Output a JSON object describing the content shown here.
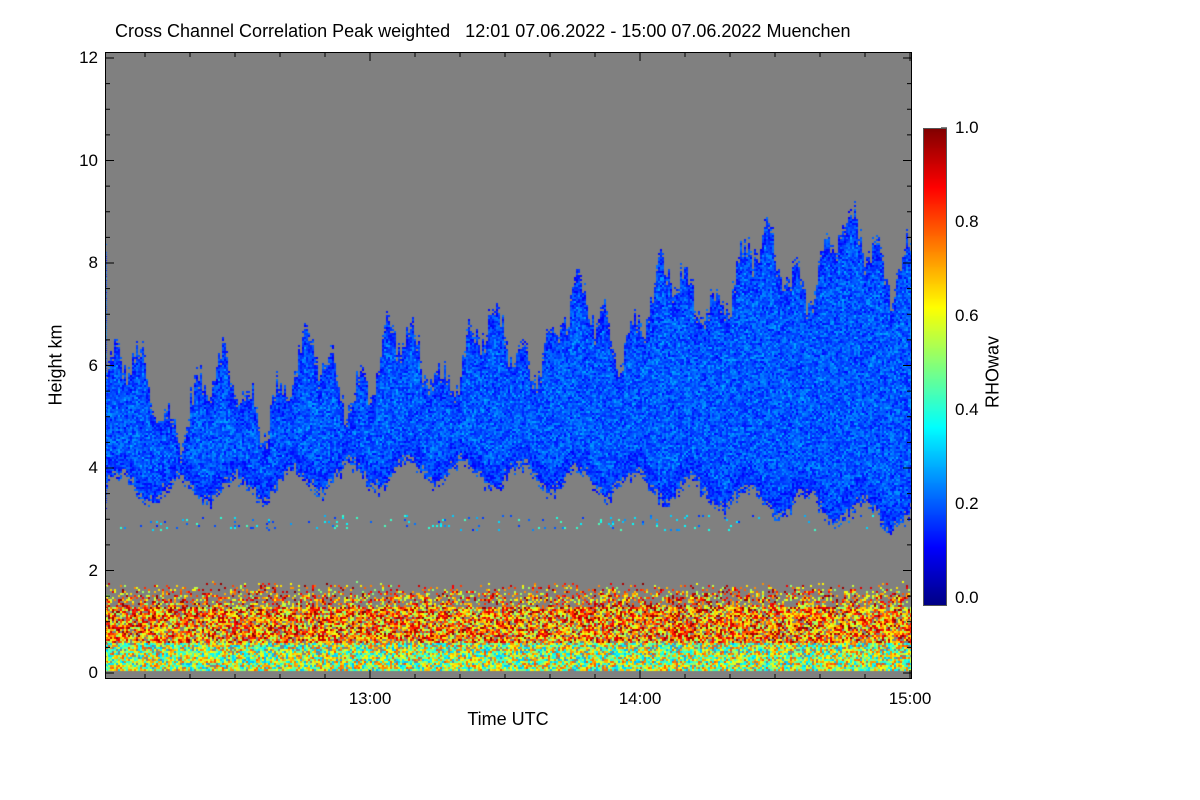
{
  "chart_data": {
    "type": "heatmap",
    "title": "Cross Channel Correlation Peak weighted   12:01 07.06.2022 - 15:00 07.06.2022 Muenchen",
    "xlabel": "Time UTC",
    "ylabel": "Height km",
    "xlim": [
      "12:01",
      "15:00"
    ],
    "ylim": [
      0,
      12
    ],
    "x_ticks": [
      "13:00",
      "14:00",
      "15:00"
    ],
    "y_ticks": [
      "0",
      "2",
      "4",
      "6",
      "8",
      "10",
      "12"
    ],
    "colorbar": {
      "label": "RHOwav",
      "range": [
        0.0,
        1.0
      ],
      "ticks": [
        "0.0",
        "0.2",
        "0.4",
        "0.6",
        "0.8",
        "1.0"
      ],
      "colormap": "jet"
    },
    "missing_color": "#808080",
    "cloud_layer": {
      "time_h_utc": [
        12.02,
        12.25,
        12.5,
        12.75,
        13.0,
        13.25,
        13.5,
        13.75,
        14.0,
        14.25,
        14.5,
        14.75,
        15.0
      ],
      "base_km": [
        3.6,
        3.5,
        3.5,
        3.7,
        3.8,
        3.9,
        3.8,
        3.7,
        3.6,
        3.4,
        3.3,
        3.1,
        3.0
      ],
      "top_km": [
        5.8,
        5.4,
        5.5,
        5.8,
        6.1,
        6.2,
        6.5,
        6.8,
        7.1,
        7.6,
        8.0,
        8.3,
        8.5
      ],
      "typical_value": 0.2
    },
    "boundary_layer": {
      "top_km": 1.8,
      "typical_value_range": [
        0.4,
        1.0
      ]
    }
  }
}
